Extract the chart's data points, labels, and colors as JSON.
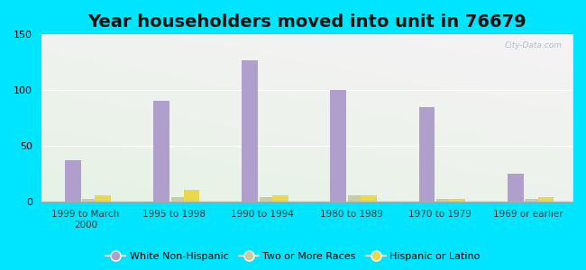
{
  "title": "Year householders moved into unit in 76679",
  "categories": [
    "1999 to March\n2000",
    "1995 to 1998",
    "1990 to 1994",
    "1980 to 1989",
    "1970 to 1979",
    "1969 or earlier"
  ],
  "white_non_hispanic": [
    37,
    90,
    127,
    100,
    85,
    25
  ],
  "two_or_more_races": [
    2,
    4,
    4,
    5,
    2,
    2
  ],
  "hispanic_or_latino": [
    5,
    10,
    5,
    5,
    2,
    4
  ],
  "white_color": "#b09fcc",
  "two_more_color": "#c8cc9f",
  "hispanic_color": "#e8d84a",
  "background_outer": "#00e5ff",
  "ylim": [
    0,
    150
  ],
  "yticks": [
    0,
    50,
    100,
    150
  ],
  "bar_width": 0.18,
  "title_fontsize": 14,
  "watermark": "City-Data.com"
}
